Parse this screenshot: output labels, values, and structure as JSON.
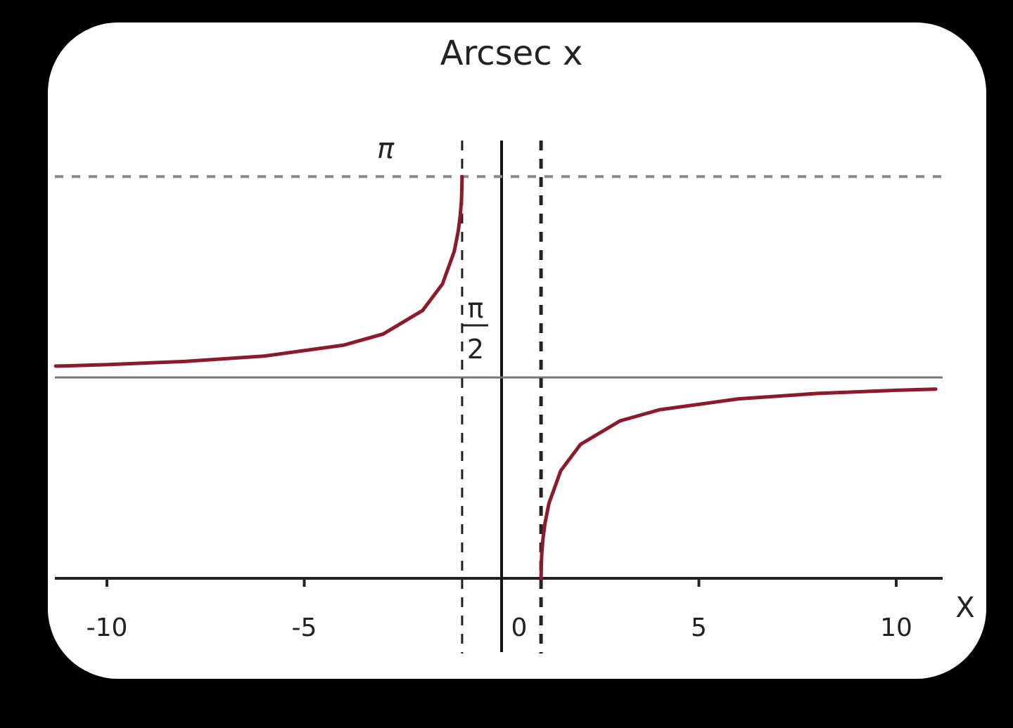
{
  "chart_data": {
    "type": "line",
    "title": "Arcsec x",
    "xlabel": "X",
    "ylabel": "",
    "xlim": [
      -11.3,
      11.3
    ],
    "ylim": [
      0,
      3.1416
    ],
    "x_ticks": [
      -10,
      -5,
      0,
      5,
      10
    ],
    "x_tick_labels": [
      "-10",
      "-5",
      "0",
      "5",
      "10"
    ],
    "y_reference_lines": [
      {
        "value": 3.1416,
        "label": "π",
        "style": "dashed"
      },
      {
        "value": 1.5708,
        "label_num": "π",
        "label_den": "2",
        "style": "solid"
      }
    ],
    "vertical_asymptotes": [
      -1,
      1
    ],
    "grid": false,
    "curve_color": "#8b1a2b",
    "series": [
      {
        "x": [
          -11.3,
          -11,
          -10,
          -8,
          -6,
          -4,
          -3,
          -2,
          -1.5,
          -1.2,
          -1.1,
          -1.05,
          -1.02,
          -1.01,
          -1
        ],
        "y": [
          1.6594,
          1.6618,
          1.671,
          1.6961,
          1.7382,
          1.8235,
          1.9106,
          2.0944,
          2.3005,
          2.5559,
          2.7119,
          2.8303,
          2.9433,
          3.0007,
          3.1416
        ]
      },
      {
        "x": [
          1,
          1.01,
          1.02,
          1.05,
          1.1,
          1.2,
          1.5,
          2,
          3,
          4,
          6,
          8,
          10,
          11
        ],
        "y": [
          0,
          0.1409,
          0.1983,
          0.3113,
          0.4297,
          0.5857,
          0.8411,
          1.0472,
          1.231,
          1.3181,
          1.4033,
          1.4455,
          1.4706,
          1.4798
        ]
      }
    ]
  }
}
